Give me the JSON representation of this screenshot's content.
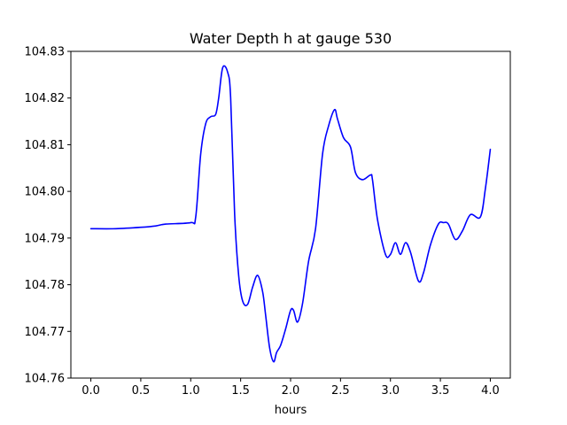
{
  "chart_data": {
    "type": "line",
    "title": "Water Depth h at gauge 530",
    "xlabel": "hours",
    "ylabel": "",
    "xlim": [
      -0.2,
      4.2
    ],
    "ylim": [
      104.76,
      104.83
    ],
    "x_ticks": [
      0.0,
      0.5,
      1.0,
      1.5,
      2.0,
      2.5,
      3.0,
      3.5,
      4.0
    ],
    "x_tick_labels": [
      "0.0",
      "0.5",
      "1.0",
      "1.5",
      "2.0",
      "2.5",
      "3.0",
      "3.5",
      "4.0"
    ],
    "y_ticks": [
      104.76,
      104.77,
      104.78,
      104.79,
      104.8,
      104.81,
      104.82,
      104.83
    ],
    "y_tick_labels": [
      "104.76",
      "104.77",
      "104.78",
      "104.79",
      "104.80",
      "104.81",
      "104.82",
      "104.83"
    ],
    "grid": false,
    "legend": "none",
    "series": [
      {
        "color": "#0000ff",
        "x": [
          0.0,
          0.25,
          0.5,
          0.65,
          0.75,
          1.0,
          1.05,
          1.1,
          1.15,
          1.2,
          1.25,
          1.28,
          1.32,
          1.37,
          1.4,
          1.44,
          1.48,
          1.52,
          1.57,
          1.62,
          1.67,
          1.72,
          1.75,
          1.79,
          1.83,
          1.86,
          1.9,
          1.95,
          2.0,
          2.03,
          2.07,
          2.12,
          2.18,
          2.25,
          2.32,
          2.38,
          2.44,
          2.47,
          2.53,
          2.6,
          2.65,
          2.72,
          2.8,
          2.82,
          2.87,
          2.95,
          3.0,
          3.05,
          3.1,
          3.15,
          3.2,
          3.28,
          3.33,
          3.4,
          3.48,
          3.53,
          3.58,
          3.65,
          3.72,
          3.8,
          3.9,
          3.95,
          4.0
        ],
        "y": [
          104.792,
          104.792,
          104.7923,
          104.7926,
          104.793,
          104.7933,
          104.7945,
          104.808,
          104.8145,
          104.816,
          104.8165,
          104.82,
          104.8265,
          104.8255,
          104.82,
          104.795,
          104.782,
          104.7765,
          104.7758,
          104.7795,
          104.782,
          104.7785,
          104.7735,
          104.7665,
          104.7635,
          104.7655,
          104.767,
          104.7705,
          104.7745,
          104.7745,
          104.772,
          104.776,
          104.785,
          104.792,
          104.808,
          104.814,
          104.8175,
          104.8155,
          104.8115,
          104.8095,
          104.804,
          104.8025,
          104.8035,
          104.8025,
          104.794,
          104.7865,
          104.7865,
          104.789,
          104.7865,
          104.789,
          104.787,
          104.7808,
          104.7825,
          104.7885,
          104.793,
          104.7933,
          104.793,
          104.7897,
          104.7915,
          104.795,
          104.7945,
          104.8005,
          104.809
        ]
      }
    ]
  }
}
